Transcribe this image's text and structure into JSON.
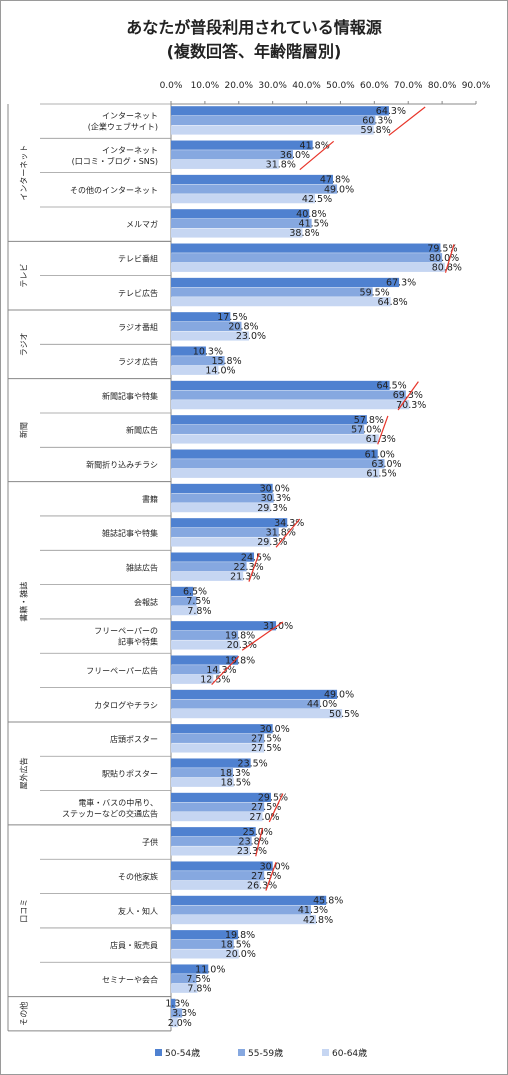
{
  "title_line1": "あなたが普段利用されている情報源",
  "title_line2": "(複数回答、年齢階層別)",
  "chart_data": {
    "type": "bar",
    "orientation": "horizontal",
    "xlim": [
      0,
      90
    ],
    "xticks": [
      "0.0%",
      "10.0%",
      "20.0%",
      "30.0%",
      "40.0%",
      "50.0%",
      "60.0%",
      "70.0%",
      "80.0%",
      "90.0%"
    ],
    "legend_position": "bottom",
    "series": [
      {
        "name": "50-54歳",
        "color": "#4f81d0"
      },
      {
        "name": "55-59歳",
        "color": "#86a8e0"
      },
      {
        "name": "60-64歳",
        "color": "#c6d6f2"
      }
    ],
    "groups": [
      {
        "label": "インターネット",
        "count": 4
      },
      {
        "label": "テレビ",
        "count": 2
      },
      {
        "label": "ラジオ",
        "count": 2
      },
      {
        "label": "新聞",
        "count": 3
      },
      {
        "label": "書籍・雑誌",
        "count": 7
      },
      {
        "label": "屋外広告",
        "count": 3
      },
      {
        "label": "口コミ",
        "count": 5
      },
      {
        "label": "その他",
        "count": 1
      }
    ],
    "categories": [
      {
        "label": [
          "インターネット",
          "(企業ウェブサイト)"
        ],
        "values": [
          64.3,
          60.3,
          59.8
        ],
        "labels": [
          "64.3%",
          "60.3%",
          "59.8%"
        ],
        "mark": [
          64.3,
          75
        ]
      },
      {
        "label": [
          "インターネット",
          "(口コミ・ブログ・SNS)"
        ],
        "values": [
          41.8,
          36.0,
          31.8
        ],
        "labels": [
          "41.8%",
          "36.0%",
          "31.8%"
        ],
        "mark": [
          38,
          48
        ]
      },
      {
        "label": [
          "その他のインターネット"
        ],
        "values": [
          47.8,
          49.0,
          42.5
        ],
        "labels": [
          "47.8%",
          "49.0%",
          "42.5%"
        ]
      },
      {
        "label": [
          "メルマガ"
        ],
        "values": [
          40.8,
          41.5,
          38.8
        ],
        "labels": [
          "40.8%",
          "41.5%",
          "38.8%"
        ]
      },
      {
        "label": [
          "テレビ番組"
        ],
        "values": [
          79.5,
          80.0,
          80.8
        ],
        "labels": [
          "79.5%",
          "80.0%",
          "80.8%"
        ],
        "mark": [
          81,
          83.5
        ]
      },
      {
        "label": [
          "テレビ広告"
        ],
        "values": [
          67.3,
          59.5,
          64.8
        ],
        "labels": [
          "67.3%",
          "59.5%",
          "64.8%"
        ]
      },
      {
        "label": [
          "ラジオ番組"
        ],
        "values": [
          17.5,
          20.8,
          23.0
        ],
        "labels": [
          "17.5%",
          "20.8%",
          "23.0%"
        ]
      },
      {
        "label": [
          "ラジオ広告"
        ],
        "values": [
          10.3,
          15.8,
          14.0
        ],
        "labels": [
          "10.3%",
          "15.8%",
          "14.0%"
        ]
      },
      {
        "label": [
          "新聞記事や特集"
        ],
        "values": [
          64.5,
          69.3,
          70.3
        ],
        "labels": [
          "64.5%",
          "69.3%",
          "70.3%"
        ],
        "mark": [
          67,
          73
        ]
      },
      {
        "label": [
          "新聞広告"
        ],
        "values": [
          57.8,
          57.0,
          61.3
        ],
        "labels": [
          "57.8%",
          "57.0%",
          "61.3%"
        ],
        "mark": [
          61,
          64
        ]
      },
      {
        "label": [
          "新聞折り込みチラシ"
        ],
        "values": [
          61.0,
          63.0,
          61.5
        ],
        "labels": [
          "61.0%",
          "63.0%",
          "61.5%"
        ]
      },
      {
        "label": [
          "書籍"
        ],
        "values": [
          30.0,
          30.3,
          29.3
        ],
        "labels": [
          "30.0%",
          "30.3%",
          "29.3%"
        ]
      },
      {
        "label": [
          "雑誌記事や特集"
        ],
        "values": [
          34.3,
          31.8,
          29.3
        ],
        "labels": [
          "34.3%",
          "31.8%",
          "29.3%"
        ],
        "mark": [
          31,
          38
        ]
      },
      {
        "label": [
          "雑誌広告"
        ],
        "values": [
          24.5,
          22.3,
          21.3
        ],
        "labels": [
          "24.5%",
          "22.3%",
          "21.3%"
        ],
        "mark": [
          23,
          26
        ]
      },
      {
        "label": [
          "会報誌"
        ],
        "values": [
          6.5,
          7.5,
          7.8
        ],
        "labels": [
          "6.5%",
          "7.5%",
          "7.8%"
        ]
      },
      {
        "label": [
          "フリーペーパーの",
          "記事や特集"
        ],
        "values": [
          31.0,
          19.8,
          20.3
        ],
        "labels": [
          "31.0%",
          "19.8%",
          "20.3%"
        ],
        "mark": [
          21,
          33
        ]
      },
      {
        "label": [
          "フリーペーパー広告"
        ],
        "values": [
          19.8,
          14.3,
          12.5
        ],
        "labels": [
          "19.8%",
          "14.3%",
          "12.5%"
        ],
        "mark": [
          12,
          20
        ]
      },
      {
        "label": [
          "カタログやチラシ"
        ],
        "values": [
          49.0,
          44.0,
          50.5
        ],
        "labels": [
          "49.0%",
          "44.0%",
          "50.5%"
        ]
      },
      {
        "label": [
          "店頭ポスター"
        ],
        "values": [
          30.0,
          27.5,
          27.5
        ],
        "labels": [
          "30.0%",
          "27.5%",
          "27.5%"
        ]
      },
      {
        "label": [
          "駅貼りポスター"
        ],
        "values": [
          23.5,
          18.3,
          18.5
        ],
        "labels": [
          "23.5%",
          "18.3%",
          "18.5%"
        ]
      },
      {
        "label": [
          "電車・バスの中吊り、",
          "ステッカーなどの交通広告"
        ],
        "values": [
          29.5,
          27.5,
          27.0
        ],
        "labels": [
          "29.5%",
          "27.5%",
          "27.0%"
        ],
        "mark": [
          29,
          33
        ]
      },
      {
        "label": [
          "子供"
        ],
        "values": [
          25.0,
          23.8,
          23.3
        ],
        "labels": [
          "25.0%",
          "23.8%",
          "23.3%"
        ],
        "mark": [
          25,
          27
        ]
      },
      {
        "label": [
          "その他家族"
        ],
        "values": [
          30.0,
          27.5,
          26.3
        ],
        "labels": [
          "30.0%",
          "27.5%",
          "26.3%"
        ],
        "mark": [
          28,
          31
        ]
      },
      {
        "label": [
          "友人・知人"
        ],
        "values": [
          45.8,
          41.3,
          42.8
        ],
        "labels": [
          "45.8%",
          "41.3%",
          "42.8%"
        ]
      },
      {
        "label": [
          "店員・販売員"
        ],
        "values": [
          19.8,
          18.5,
          20.0
        ],
        "labels": [
          "19.8%",
          "18.5%",
          "20.0%"
        ]
      },
      {
        "label": [
          "セミナーや会合"
        ],
        "values": [
          11.0,
          7.5,
          7.8
        ],
        "labels": [
          "11.0%",
          "7.5%",
          "7.8%"
        ]
      },
      {
        "label": [],
        "values": [
          1.3,
          3.3,
          2.0
        ],
        "labels": [
          "1.3%",
          "3.3%",
          "2.0%"
        ]
      }
    ]
  }
}
